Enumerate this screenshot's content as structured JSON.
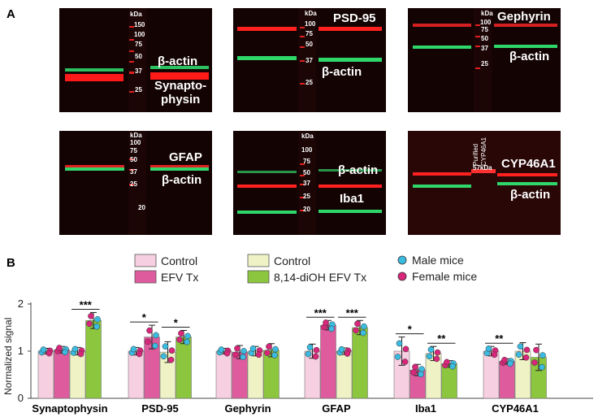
{
  "panel_a": {
    "letter": "A",
    "blots": [
      {
        "kda_header": "kDa",
        "markers": [
          "150",
          "100",
          "75",
          "50",
          "37",
          "25"
        ],
        "labels": [
          "β-actin",
          "Synapto-",
          "physin"
        ]
      },
      {
        "kda_header": "kDa",
        "markers": [
          "100",
          "75",
          "50",
          "37",
          "25"
        ],
        "labels": [
          "PSD-95",
          "β-actin"
        ]
      },
      {
        "kda_header": "kDa",
        "markers": [
          "100",
          "75",
          "50",
          "37",
          "25"
        ],
        "labels": [
          "Gephyrin",
          "β-actin"
        ]
      },
      {
        "kda_header": "kDa",
        "markers": [
          "100",
          "75",
          "50",
          "37",
          "25",
          "20"
        ],
        "labels": [
          "GFAP",
          "β-actin"
        ]
      },
      {
        "kda_header": "kDa",
        "markers": [
          "100",
          "75",
          "50",
          "37",
          "25",
          "20"
        ],
        "labels": [
          "β-actin",
          "Iba1"
        ]
      },
      {
        "kda_header": "",
        "markers": [
          "57kDa"
        ],
        "rotated": [
          "Purified",
          "CYP46A1"
        ],
        "labels": [
          "CYP46A1",
          "β-actin"
        ]
      }
    ]
  },
  "panel_b": {
    "letter": "B"
  },
  "legend": {
    "items": [
      {
        "label": "Control",
        "color": "#f6cfe0"
      },
      {
        "label": "EFV Tx",
        "color": "#de5c9e"
      },
      {
        "label": "Control",
        "color": "#eef2c4"
      },
      {
        "label": "8,14-diOH EFV Tx",
        "color": "#8cc63f"
      }
    ],
    "points": [
      {
        "label": "Male mice",
        "color": "#3cbbe0"
      },
      {
        "label": "Female mice",
        "color": "#d8267a"
      }
    ]
  },
  "chart_data": {
    "type": "bar",
    "ylabel": "Normalized signal",
    "ylim": [
      0,
      2
    ],
    "yticks": [
      "0",
      "1",
      "2"
    ],
    "categories": [
      "Synaptophysin",
      "PSD-95",
      "Gephyrin",
      "GFAP",
      "Iba1",
      "CYP46A1"
    ],
    "bar_colors": [
      "#f6cfe0",
      "#de5c9e",
      "#eef2c4",
      "#8cc63f"
    ],
    "series": [
      {
        "values": [
          1.0,
          1.0,
          1.0,
          1.0,
          1.0,
          1.0
        ],
        "errors": [
          0.06,
          0.08,
          0.06,
          0.15,
          0.3,
          0.1
        ]
      },
      {
        "values": [
          1.03,
          1.3,
          0.98,
          1.55,
          0.6,
          0.78
        ],
        "errors": [
          0.07,
          0.25,
          0.14,
          0.1,
          0.12,
          0.06
        ]
      },
      {
        "values": [
          1.0,
          0.98,
          1.0,
          1.0,
          0.95,
          1.0
        ],
        "errors": [
          0.08,
          0.22,
          0.1,
          0.07,
          0.15,
          0.18
        ]
      },
      {
        "values": [
          1.65,
          1.3,
          1.02,
          1.5,
          0.73,
          0.87
        ],
        "errors": [
          0.17,
          0.14,
          0.14,
          0.15,
          0.07,
          0.28
        ]
      }
    ],
    "significance": [
      {
        "category": 0,
        "pair": [
          2,
          3
        ],
        "label": "***"
      },
      {
        "category": 1,
        "pair": [
          0,
          1
        ],
        "label": "*"
      },
      {
        "category": 1,
        "pair": [
          2,
          3
        ],
        "label": "*"
      },
      {
        "category": 3,
        "pair": [
          0,
          1
        ],
        "label": "***"
      },
      {
        "category": 3,
        "pair": [
          2,
          3
        ],
        "label": "***"
      },
      {
        "category": 4,
        "pair": [
          0,
          1
        ],
        "label": "*"
      },
      {
        "category": 4,
        "pair": [
          2,
          3
        ],
        "label": "**"
      },
      {
        "category": 5,
        "pair": [
          0,
          1
        ],
        "label": "**"
      }
    ]
  }
}
